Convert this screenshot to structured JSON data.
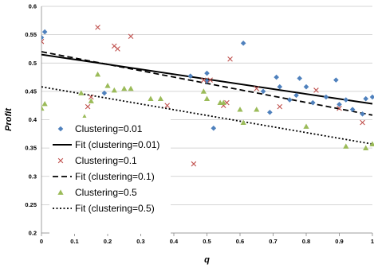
{
  "chart_data": {
    "type": "scatter",
    "title": "",
    "xlabel": "q",
    "ylabel": "Profit",
    "xlim": [
      0,
      1
    ],
    "ylim": [
      0.2,
      0.6
    ],
    "xticks": [
      "0",
      "0.1",
      "0.2",
      "0.3",
      "0.4",
      "0.5",
      "0.6",
      "0.7",
      "0.8",
      "0.9",
      "1"
    ],
    "yticks": [
      "0.2",
      "0.25",
      "0.3",
      "0.35",
      "0.4",
      "0.45",
      "0.5",
      "0.55",
      "0.6"
    ],
    "grid": "horizontal",
    "legend_position": "left",
    "series": [
      {
        "name": "Clustering=0.01",
        "marker": "diamond",
        "color": "#4f81bd",
        "points": [
          [
            0.0,
            0.545
          ],
          [
            0.01,
            0.555
          ],
          [
            0.19,
            0.447
          ],
          [
            0.45,
            0.477
          ],
          [
            0.5,
            0.482
          ],
          [
            0.5,
            0.468
          ],
          [
            0.52,
            0.385
          ],
          [
            0.61,
            0.535
          ],
          [
            0.67,
            0.45
          ],
          [
            0.69,
            0.413
          ],
          [
            0.71,
            0.475
          ],
          [
            0.72,
            0.458
          ],
          [
            0.75,
            0.435
          ],
          [
            0.77,
            0.443
          ],
          [
            0.78,
            0.473
          ],
          [
            0.8,
            0.458
          ],
          [
            0.82,
            0.43
          ],
          [
            0.86,
            0.44
          ],
          [
            0.89,
            0.47
          ],
          [
            0.9,
            0.427
          ],
          [
            0.92,
            0.435
          ],
          [
            0.94,
            0.418
          ],
          [
            0.97,
            0.41
          ],
          [
            0.98,
            0.437
          ],
          [
            1.0,
            0.44
          ]
        ]
      },
      {
        "name": "Fit (clustering=0.01)",
        "line": "solid",
        "color": "#000000",
        "x": [
          0,
          1
        ],
        "y": [
          0.515,
          0.428
        ]
      },
      {
        "name": "Clustering=0.1",
        "marker": "x",
        "color": "#c0504d",
        "points": [
          [
            0.0,
            0.538
          ],
          [
            0.14,
            0.423
          ],
          [
            0.15,
            0.44
          ],
          [
            0.17,
            0.563
          ],
          [
            0.22,
            0.53
          ],
          [
            0.23,
            0.525
          ],
          [
            0.27,
            0.547
          ],
          [
            0.38,
            0.425
          ],
          [
            0.46,
            0.322
          ],
          [
            0.49,
            0.47
          ],
          [
            0.51,
            0.47
          ],
          [
            0.55,
            0.425
          ],
          [
            0.56,
            0.43
          ],
          [
            0.57,
            0.507
          ],
          [
            0.65,
            0.455
          ],
          [
            0.72,
            0.423
          ],
          [
            0.83,
            0.452
          ],
          [
            0.9,
            0.42
          ],
          [
            0.97,
            0.395
          ]
        ]
      },
      {
        "name": "Fit (clustering=0.1)",
        "line": "dashed",
        "color": "#000000",
        "x": [
          0,
          1
        ],
        "y": [
          0.52,
          0.408
        ]
      },
      {
        "name": "Clustering=0.5",
        "marker": "triangle",
        "color": "#9bbb59",
        "points": [
          [
            0.0,
            0.42
          ],
          [
            0.01,
            0.428
          ],
          [
            0.12,
            0.447
          ],
          [
            0.13,
            0.405
          ],
          [
            0.15,
            0.433
          ],
          [
            0.17,
            0.48
          ],
          [
            0.2,
            0.46
          ],
          [
            0.22,
            0.452
          ],
          [
            0.25,
            0.455
          ],
          [
            0.27,
            0.455
          ],
          [
            0.33,
            0.437
          ],
          [
            0.36,
            0.437
          ],
          [
            0.49,
            0.45
          ],
          [
            0.5,
            0.437
          ],
          [
            0.54,
            0.43
          ],
          [
            0.55,
            0.43
          ],
          [
            0.6,
            0.418
          ],
          [
            0.61,
            0.395
          ],
          [
            0.65,
            0.418
          ],
          [
            0.8,
            0.388
          ],
          [
            0.92,
            0.353
          ],
          [
            1.0,
            0.357
          ],
          [
            0.98,
            0.35
          ]
        ]
      },
      {
        "name": "Fit (clustering=0.5)",
        "line": "dotted",
        "color": "#000000",
        "x": [
          0,
          1
        ],
        "y": [
          0.458,
          0.357
        ]
      }
    ]
  }
}
